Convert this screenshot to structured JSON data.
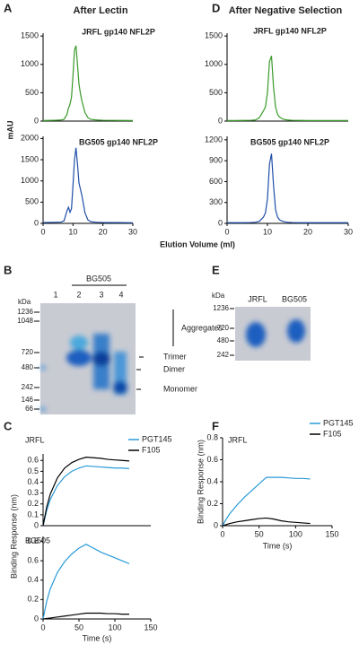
{
  "panel_labels": [
    "A",
    "D",
    "B",
    "E",
    "C",
    "F"
  ],
  "headers": [
    "After Lectin",
    "After Negative Selection"
  ],
  "shared_labels": {
    "mau": "mAU",
    "elution": "Elution Volume (ml)",
    "binding": "Binding Response (nm)",
    "time": "Time (s)"
  },
  "gel_b": {
    "header": "BG505",
    "lanes": [
      "1",
      "2",
      "3",
      "4"
    ],
    "kda_label": "kDa",
    "markers": [
      "1236",
      "1048",
      "720",
      "480",
      "242",
      "146",
      "66"
    ],
    "bands": [
      "Aggregates",
      "Trimer",
      "Dimer",
      "Monomer"
    ]
  },
  "gel_e": {
    "kda_label": "kDa",
    "lanes": [
      "JRFL",
      "BG505"
    ],
    "markers": [
      "1236",
      "720",
      "480",
      "242"
    ]
  },
  "chart_data": [
    {
      "type": "line",
      "title": "JRFL gp140 NFL2P",
      "title_color": "#3a9a2a",
      "x": [
        0,
        2,
        4,
        6,
        7,
        8,
        8.5,
        9,
        9.5,
        10,
        10.5,
        11,
        11.5,
        12,
        12.5,
        13,
        14,
        15,
        16,
        18,
        20,
        25,
        30
      ],
      "series": [
        {
          "color": "#3a9a2a",
          "values": [
            10,
            12,
            15,
            20,
            30,
            120,
            230,
            300,
            420,
            800,
            1250,
            1330,
            1000,
            650,
            480,
            350,
            150,
            60,
            30,
            20,
            15,
            12,
            10
          ]
        }
      ],
      "xlim": [
        0,
        30
      ],
      "ylim": [
        0,
        1550
      ],
      "yticks": [
        0,
        500,
        1000,
        1500
      ]
    },
    {
      "type": "line",
      "title": "BG505 gp140 NFL2P",
      "title_color": "#1f4fa8",
      "x": [
        0,
        2,
        4,
        6,
        7,
        8,
        8.5,
        9,
        9.5,
        10,
        10.5,
        11,
        11.5,
        12,
        12.5,
        13,
        14,
        15,
        16,
        18,
        20,
        25,
        30
      ],
      "series": [
        {
          "color": "#1f4fa8",
          "values": [
            20,
            22,
            25,
            30,
            60,
            300,
            380,
            260,
            350,
            900,
            1500,
            1780,
            1400,
            950,
            800,
            650,
            250,
            80,
            40,
            25,
            20,
            18,
            15
          ]
        }
      ],
      "xlim": [
        0,
        30
      ],
      "xticks": [
        0,
        10,
        20,
        30
      ],
      "ylim": [
        0,
        2050
      ],
      "yticks": [
        0,
        500,
        1000,
        1500,
        2000
      ]
    },
    {
      "type": "line",
      "title": "JRFL gp140 NFL2P",
      "title_color": "#3a9a2a",
      "x": [
        0,
        2,
        4,
        6,
        7,
        8,
        8.5,
        9,
        9.5,
        10,
        10.5,
        11,
        11.5,
        12,
        12.5,
        13,
        14,
        15,
        16,
        18,
        20,
        25,
        30
      ],
      "series": [
        {
          "color": "#3a9a2a",
          "values": [
            10,
            10,
            12,
            15,
            20,
            60,
            120,
            180,
            250,
            500,
            1050,
            1150,
            600,
            250,
            120,
            70,
            30,
            20,
            15,
            12,
            10,
            10,
            10
          ]
        }
      ],
      "xlim": [
        0,
        30
      ],
      "ylim": [
        0,
        1550
      ],
      "yticks": [
        0,
        500,
        1000,
        1500
      ]
    },
    {
      "type": "line",
      "title": "BG505 gp140 NFL2P",
      "title_color": "#1f4fa8",
      "x": [
        0,
        2,
        4,
        6,
        7,
        8,
        8.5,
        9,
        9.5,
        10,
        10.5,
        11,
        11.5,
        12,
        12.5,
        13,
        14,
        15,
        16,
        18,
        20,
        25,
        30
      ],
      "series": [
        {
          "color": "#1f4fa8",
          "values": [
            10,
            10,
            10,
            12,
            15,
            30,
            60,
            90,
            150,
            350,
            850,
            1000,
            550,
            200,
            90,
            50,
            25,
            15,
            12,
            10,
            10,
            10,
            10
          ]
        }
      ],
      "xlim": [
        0,
        30
      ],
      "xticks": [
        0,
        10,
        20,
        30
      ],
      "ylim": [
        0,
        1250
      ],
      "yticks": [
        0,
        300,
        600,
        900,
        1200
      ]
    },
    {
      "type": "line",
      "title": "JRFL",
      "title_color": "#3a9a2a",
      "legend": "upper right",
      "x": [
        0,
        5,
        10,
        20,
        30,
        40,
        50,
        60,
        70,
        80,
        90,
        100,
        110,
        120
      ],
      "series": [
        {
          "name": "PGT145",
          "color": "#2a9ad8",
          "values": [
            0,
            0.14,
            0.24,
            0.37,
            0.45,
            0.5,
            0.53,
            0.55,
            0.545,
            0.54,
            0.535,
            0.53,
            0.53,
            0.525
          ]
        },
        {
          "name": "F105",
          "color": "#000000",
          "values": [
            0,
            0.17,
            0.29,
            0.44,
            0.53,
            0.58,
            0.61,
            0.63,
            0.625,
            0.62,
            0.61,
            0.605,
            0.6,
            0.595
          ]
        }
      ],
      "xlim": [
        0,
        150
      ],
      "ylim": [
        0,
        0.66
      ],
      "yticks": [
        0,
        0.1,
        0.2,
        0.3,
        0.4,
        0.5,
        0.6
      ]
    },
    {
      "type": "line",
      "title": "BG505",
      "title_color": "#1f4fa8",
      "x": [
        0,
        5,
        10,
        20,
        30,
        40,
        50,
        60,
        70,
        80,
        90,
        100,
        110,
        120
      ],
      "series": [
        {
          "color": "#2a9ad8",
          "values": [
            0,
            0.18,
            0.31,
            0.48,
            0.59,
            0.67,
            0.73,
            0.77,
            0.73,
            0.69,
            0.66,
            0.63,
            0.6,
            0.57
          ]
        },
        {
          "color": "#000000",
          "values": [
            0,
            0.005,
            0.01,
            0.02,
            0.03,
            0.04,
            0.05,
            0.06,
            0.06,
            0.06,
            0.055,
            0.055,
            0.05,
            0.05
          ]
        }
      ],
      "xlim": [
        0,
        150
      ],
      "xticks": [
        0,
        50,
        100,
        150
      ],
      "ylim": [
        0,
        0.85
      ],
      "yticks": [
        0,
        0.2,
        0.4,
        0.6,
        0.8
      ]
    },
    {
      "type": "line",
      "title": "JRFL",
      "title_color": "#3a9a2a",
      "legend": "upper right",
      "x_label": "Time (s)",
      "y_label": "Binding Response (nm)",
      "x": [
        0,
        5,
        10,
        20,
        30,
        40,
        50,
        60,
        70,
        80,
        90,
        100,
        110,
        120
      ],
      "series": [
        {
          "name": "PGT145",
          "color": "#2a9ad8",
          "values": [
            0,
            0.06,
            0.11,
            0.19,
            0.26,
            0.32,
            0.38,
            0.44,
            0.44,
            0.44,
            0.435,
            0.43,
            0.43,
            0.425
          ]
        },
        {
          "name": "F105",
          "color": "#000000",
          "values": [
            0,
            0.01,
            0.02,
            0.035,
            0.045,
            0.055,
            0.065,
            0.07,
            0.06,
            0.045,
            0.035,
            0.03,
            0.025,
            0.02
          ]
        }
      ],
      "xlim": [
        0,
        150
      ],
      "xticks": [
        0,
        50,
        100,
        150
      ],
      "ylim": [
        0,
        0.8
      ],
      "yticks": [
        0,
        0.2,
        0.4,
        0.6,
        0.8
      ]
    }
  ]
}
